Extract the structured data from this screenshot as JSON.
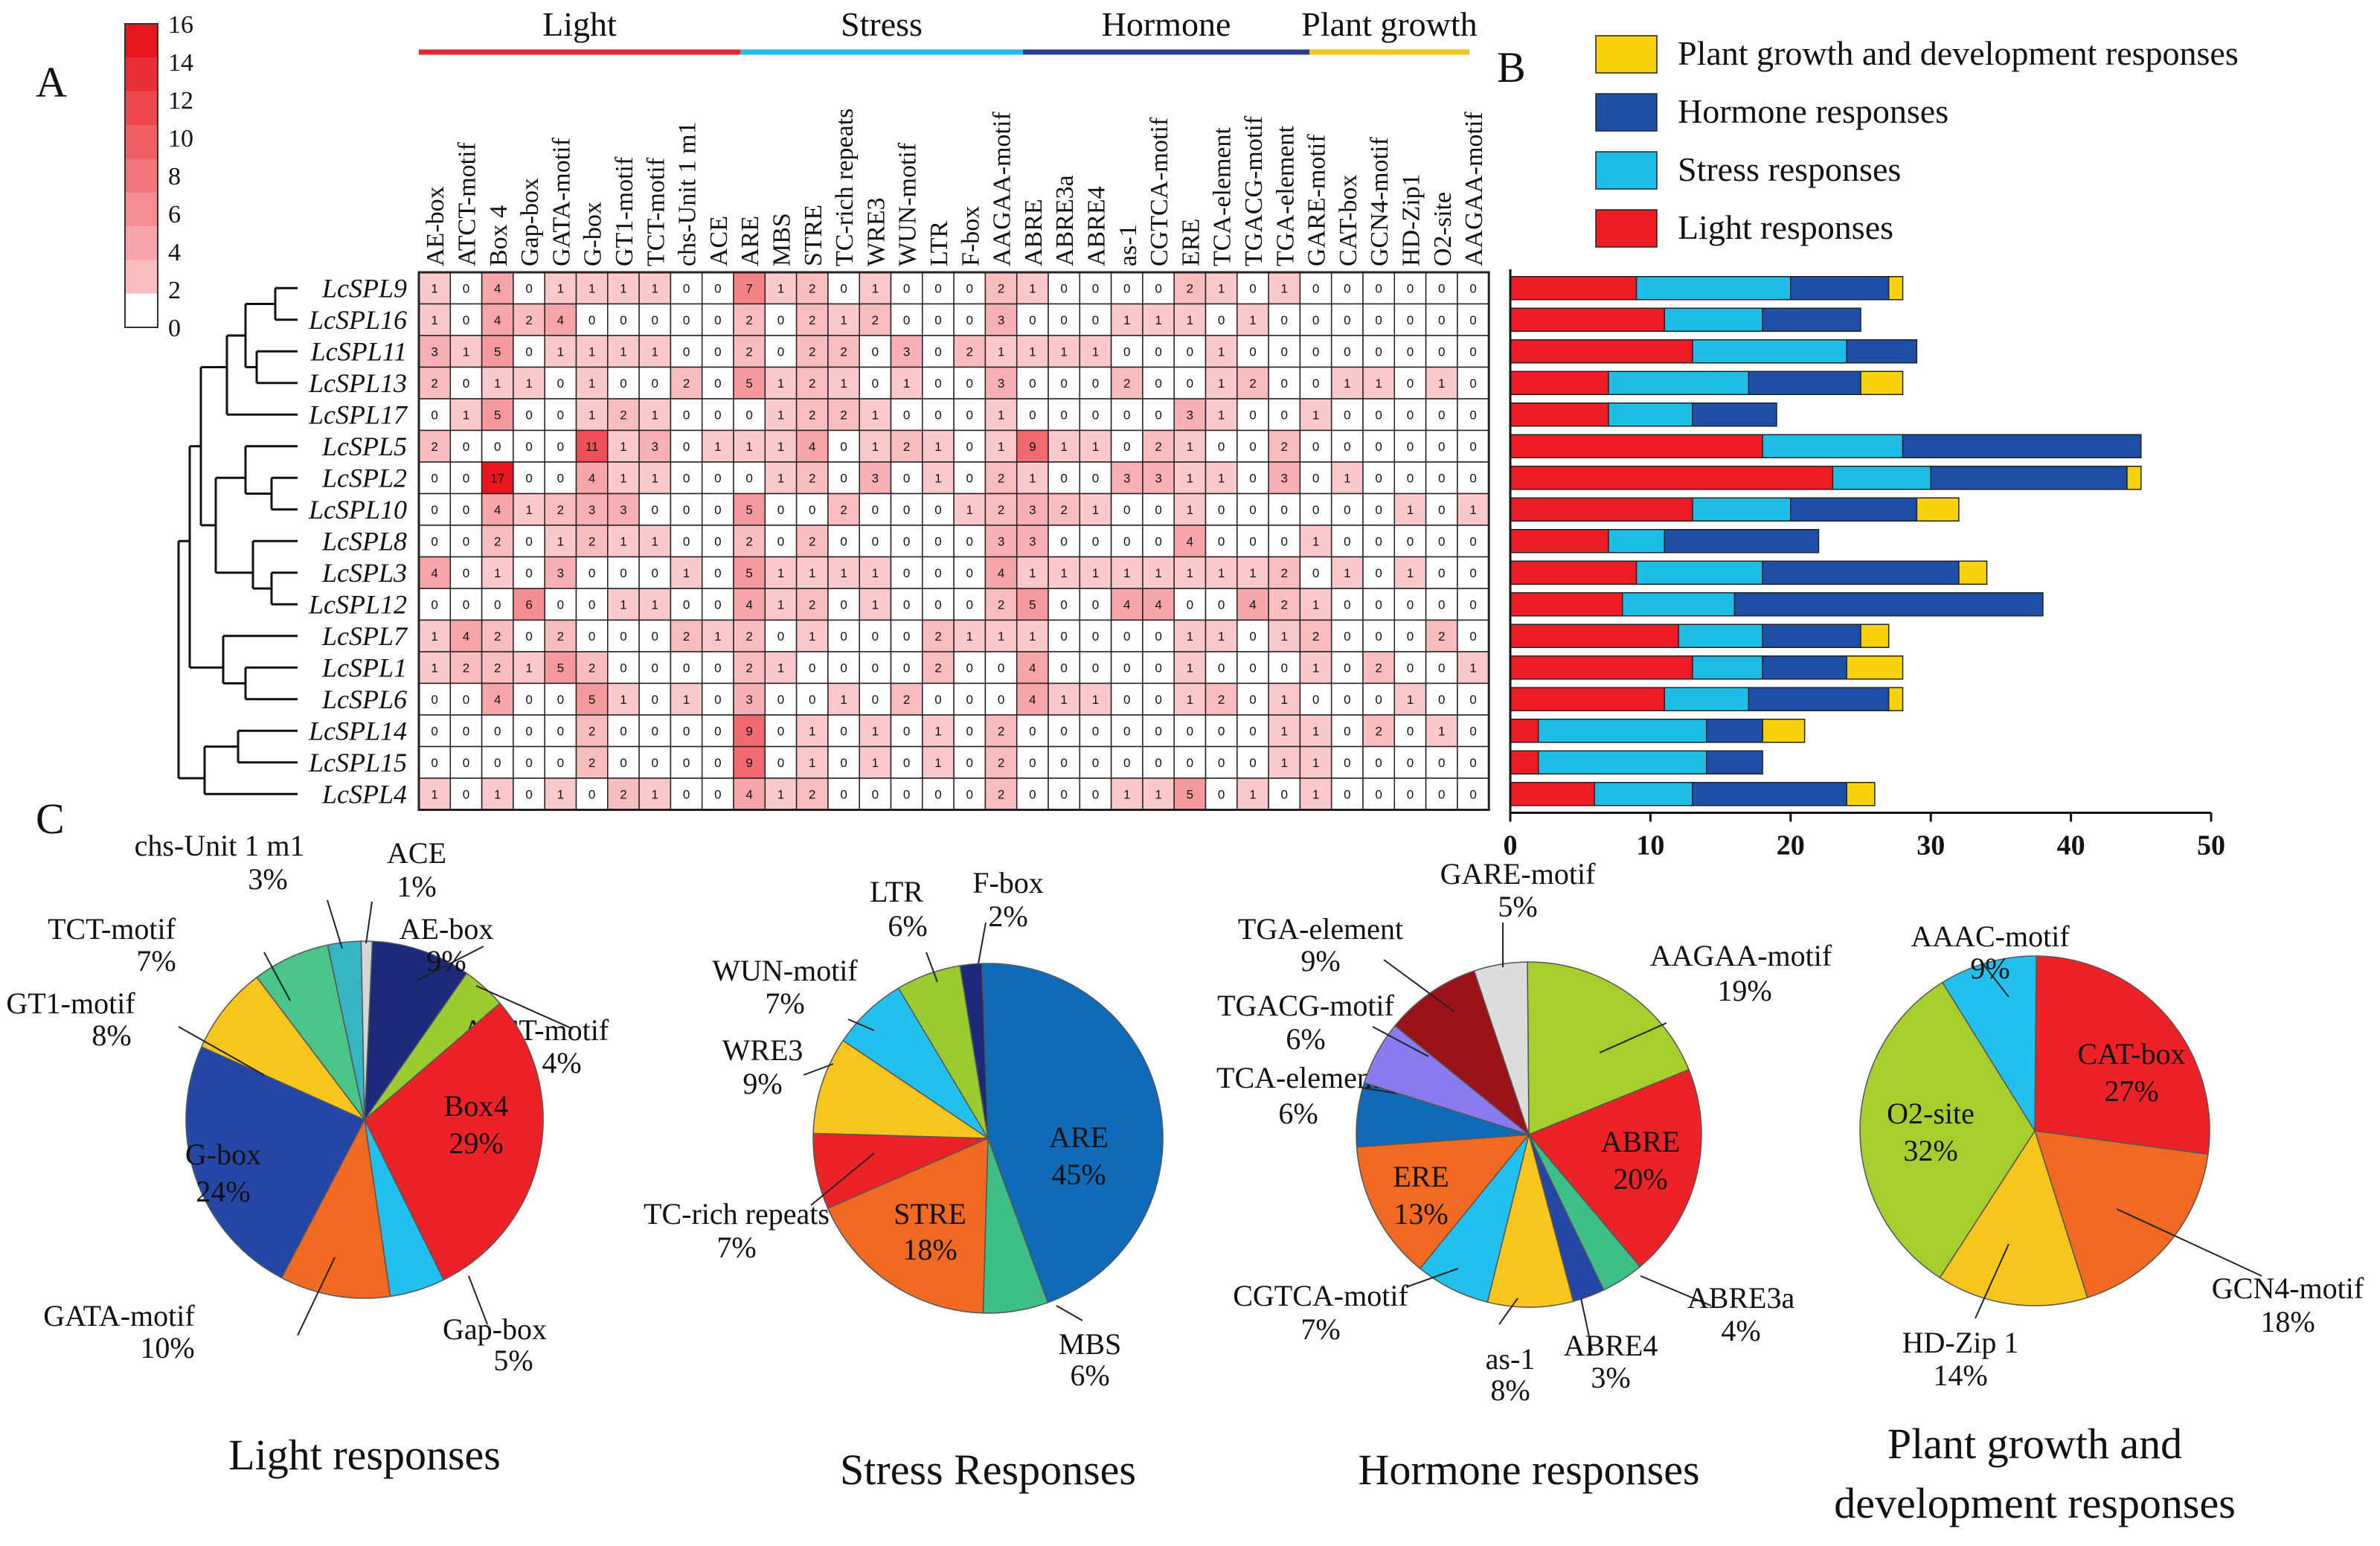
{
  "panels": {
    "a": "A",
    "b": "B",
    "c": "C"
  },
  "colorbar": {
    "ticks": [
      "0",
      "2",
      "4",
      "6",
      "8",
      "10",
      "12",
      "14",
      "16"
    ],
    "min": 0,
    "max": 16
  },
  "colors": {
    "light": "#e8272a",
    "stress": "#1fbde7",
    "hormone": "#283c91",
    "plant_growth": "#f5c518",
    "bar_light": "#ee1c24",
    "bar_stress": "#1dbde8",
    "bar_hormone": "#1f4ea6",
    "bar_growth": "#f8d20a"
  },
  "chart_data": [
    {
      "id": "heatmap",
      "type": "heatmap",
      "title": "",
      "groups": [
        {
          "name": "Light",
          "start": 0,
          "end": 9
        },
        {
          "name": "Stress",
          "start": 10,
          "end": 18
        },
        {
          "name": "Hormone",
          "start": 19,
          "end": 27
        },
        {
          "name": "Plant growth",
          "start": 28,
          "end": 31
        }
      ],
      "columns": [
        "AE-box",
        "ATCT-motif",
        "Box 4",
        "Gap-box",
        "GATA-motif",
        "G-box",
        "GT1-motif",
        "TCT-motif",
        "chs-Unit 1 m1",
        "ACE",
        "ARE",
        "MBS",
        "STRE",
        "TC-rich repeats",
        "WRE3",
        "WUN-motif",
        "LTR",
        "F-box",
        "AAGAA-motif",
        "ABRE",
        "ABRE3a",
        "ABRE4",
        "as-1",
        "CGTCA-motif",
        "ERE",
        "TCA-element",
        "TGACG-motif",
        "TGA-element",
        "GARE-motif",
        "CAT-box",
        "GCN4-motif",
        "HD-Zip1",
        "O2-site",
        "AAGAA-motif"
      ],
      "rows": [
        "LcSPL9",
        "LcSPL16",
        "LcSPL11",
        "LcSPL13",
        "LcSPL17",
        "LcSPL5",
        "LcSPL2",
        "LcSPL10",
        "LcSPL8",
        "LcSPL3",
        "LcSPL12",
        "LcSPL7",
        "LcSPL1",
        "LcSPL6",
        "LcSPL14",
        "LcSPL15",
        "LcSPL4"
      ],
      "values": [
        [
          1,
          0,
          4,
          0,
          1,
          1,
          1,
          1,
          0,
          0,
          7,
          1,
          2,
          0,
          1,
          0,
          0,
          0,
          2,
          1,
          0,
          0,
          0,
          0,
          2,
          1,
          0,
          1,
          0,
          0,
          0,
          0,
          0,
          0
        ],
        [
          1,
          0,
          4,
          2,
          4,
          0,
          0,
          0,
          0,
          0,
          2,
          0,
          2,
          1,
          2,
          0,
          0,
          0,
          3,
          0,
          0,
          0,
          1,
          1,
          1,
          0,
          1,
          0,
          0,
          0,
          0,
          0,
          0,
          0
        ],
        [
          3,
          1,
          5,
          0,
          1,
          1,
          1,
          1,
          0,
          0,
          2,
          0,
          2,
          2,
          0,
          3,
          0,
          2,
          1,
          1,
          1,
          1,
          0,
          0,
          0,
          1,
          0,
          0,
          0,
          0,
          0,
          0,
          0,
          0
        ],
        [
          2,
          0,
          1,
          1,
          0,
          1,
          0,
          0,
          2,
          0,
          5,
          1,
          2,
          1,
          0,
          1,
          0,
          0,
          3,
          0,
          0,
          0,
          2,
          0,
          0,
          1,
          2,
          0,
          0,
          1,
          1,
          0,
          1,
          0
        ],
        [
          0,
          1,
          5,
          0,
          0,
          1,
          2,
          1,
          0,
          0,
          0,
          1,
          2,
          2,
          1,
          0,
          0,
          0,
          1,
          0,
          0,
          0,
          0,
          0,
          3,
          1,
          0,
          0,
          1,
          0,
          0,
          0,
          0,
          0
        ],
        [
          2,
          0,
          0,
          0,
          0,
          11,
          1,
          3,
          0,
          1,
          1,
          1,
          4,
          0,
          1,
          2,
          1,
          0,
          1,
          9,
          1,
          1,
          0,
          2,
          1,
          0,
          0,
          2,
          0,
          0,
          0,
          0,
          0,
          0
        ],
        [
          0,
          0,
          17,
          0,
          0,
          4,
          1,
          1,
          0,
          0,
          0,
          1,
          2,
          0,
          3,
          0,
          1,
          0,
          2,
          1,
          0,
          0,
          3,
          3,
          1,
          1,
          0,
          3,
          0,
          1,
          0,
          0,
          0,
          0
        ],
        [
          0,
          0,
          4,
          1,
          2,
          3,
          3,
          0,
          0,
          0,
          5,
          0,
          0,
          2,
          0,
          0,
          0,
          1,
          2,
          3,
          2,
          1,
          0,
          0,
          1,
          0,
          0,
          0,
          0,
          0,
          0,
          1,
          0,
          1
        ],
        [
          0,
          0,
          2,
          0,
          1,
          2,
          1,
          1,
          0,
          0,
          2,
          0,
          2,
          0,
          0,
          0,
          0,
          0,
          3,
          3,
          0,
          0,
          0,
          0,
          4,
          0,
          0,
          0,
          1,
          0,
          0,
          0,
          0,
          0
        ],
        [
          4,
          0,
          1,
          0,
          3,
          0,
          0,
          0,
          1,
          0,
          5,
          1,
          1,
          1,
          1,
          0,
          0,
          0,
          4,
          1,
          1,
          1,
          1,
          1,
          1,
          1,
          1,
          2,
          0,
          1,
          0,
          1,
          0,
          0
        ],
        [
          0,
          0,
          0,
          6,
          0,
          0,
          1,
          1,
          0,
          0,
          4,
          1,
          2,
          0,
          1,
          0,
          0,
          0,
          2,
          5,
          0,
          0,
          4,
          4,
          0,
          0,
          4,
          2,
          1,
          0,
          0,
          0,
          0,
          0
        ],
        [
          1,
          4,
          2,
          0,
          2,
          0,
          0,
          0,
          2,
          1,
          2,
          0,
          1,
          0,
          0,
          0,
          2,
          1,
          1,
          1,
          0,
          0,
          0,
          0,
          1,
          1,
          0,
          1,
          2,
          0,
          0,
          0,
          2,
          0
        ],
        [
          1,
          2,
          2,
          1,
          5,
          2,
          0,
          0,
          0,
          0,
          2,
          1,
          0,
          0,
          0,
          0,
          2,
          0,
          0,
          4,
          0,
          0,
          0,
          0,
          1,
          0,
          0,
          0,
          1,
          0,
          2,
          0,
          0,
          1
        ],
        [
          0,
          0,
          4,
          0,
          0,
          5,
          1,
          0,
          1,
          0,
          3,
          0,
          0,
          1,
          0,
          2,
          0,
          0,
          0,
          4,
          1,
          1,
          0,
          0,
          1,
          2,
          0,
          1,
          0,
          0,
          0,
          1,
          0,
          0
        ],
        [
          0,
          0,
          0,
          0,
          0,
          2,
          0,
          0,
          0,
          0,
          9,
          0,
          1,
          0,
          1,
          0,
          1,
          0,
          2,
          0,
          0,
          0,
          0,
          0,
          0,
          0,
          0,
          1,
          1,
          0,
          2,
          0,
          1,
          0
        ],
        [
          0,
          0,
          0,
          0,
          0,
          2,
          0,
          0,
          0,
          0,
          9,
          0,
          1,
          0,
          1,
          0,
          1,
          0,
          2,
          0,
          0,
          0,
          0,
          0,
          0,
          0,
          0,
          1,
          1,
          0,
          0,
          0,
          0,
          0
        ],
        [
          1,
          0,
          1,
          0,
          1,
          0,
          2,
          1,
          0,
          0,
          4,
          1,
          2,
          0,
          0,
          0,
          0,
          0,
          2,
          0,
          0,
          0,
          1,
          1,
          5,
          0,
          1,
          0,
          1,
          0,
          0,
          0,
          0,
          0
        ]
      ]
    },
    {
      "id": "stacked-bars",
      "type": "bar",
      "orientation": "horizontal",
      "stacked": true,
      "categories": [
        "LcSPL9",
        "LcSPL16",
        "LcSPL11",
        "LcSPL13",
        "LcSPL17",
        "LcSPL5",
        "LcSPL2",
        "LcSPL10",
        "LcSPL8",
        "LcSPL3",
        "LcSPL12",
        "LcSPL7",
        "LcSPL1",
        "LcSPL6",
        "LcSPL14",
        "LcSPL15",
        "LcSPL4"
      ],
      "series": [
        {
          "name": "Light responses",
          "values": [
            9,
            11,
            13,
            7,
            7,
            18,
            23,
            13,
            7,
            9,
            8,
            12,
            13,
            11,
            2,
            2,
            6
          ]
        },
        {
          "name": "Stress responses",
          "values": [
            11,
            7,
            11,
            10,
            6,
            10,
            7,
            7,
            4,
            9,
            8,
            6,
            5,
            6,
            12,
            12,
            7
          ]
        },
        {
          "name": "Hormone responses",
          "values": [
            7,
            7,
            5,
            8,
            6,
            17,
            14,
            9,
            11,
            14,
            22,
            7,
            6,
            10,
            4,
            4,
            11
          ]
        },
        {
          "name": "Plant growth and development responses",
          "values": [
            1,
            0,
            0,
            3,
            0,
            0,
            1,
            3,
            0,
            2,
            0,
            2,
            4,
            1,
            3,
            0,
            2
          ]
        }
      ],
      "legend_order": [
        "Plant growth and development responses",
        "Hormone responses",
        "Stress responses",
        "Light responses"
      ],
      "xlim": [
        0,
        50
      ],
      "xticks": [
        "0",
        "10",
        "20",
        "30",
        "40",
        "50"
      ]
    },
    {
      "id": "pie-light",
      "type": "pie",
      "title": "Light responses",
      "slices": [
        {
          "label": "AE-box",
          "pct": "9%",
          "value": 9,
          "color": "#1b2a7b"
        },
        {
          "label": "ATCT-motif",
          "pct": "4%",
          "value": 4,
          "color": "#9bcc2f"
        },
        {
          "label": "Box4",
          "pct": "29%",
          "value": 29,
          "color": "#ee2126",
          "inside": true
        },
        {
          "label": "Gap-box",
          "pct": "5%",
          "value": 5,
          "color": "#22c0ec"
        },
        {
          "label": "GATA-motif",
          "pct": "10%",
          "value": 10,
          "color": "#f26a21"
        },
        {
          "label": "G-box",
          "pct": "24%",
          "value": 24,
          "color": "#2446a6",
          "inside": true
        },
        {
          "label": "GT1-motif",
          "pct": "8%",
          "value": 8,
          "color": "#f8c51c"
        },
        {
          "label": "TCT-motif",
          "pct": "7%",
          "value": 7,
          "color": "#4bc48a"
        },
        {
          "label": "chs-Unit 1 m1",
          "pct": "3%",
          "value": 3,
          "color": "#35b6c2"
        },
        {
          "label": "ACE",
          "pct": "1%",
          "value": 1,
          "color": "#d5d5d5"
        }
      ]
    },
    {
      "id": "pie-stress",
      "type": "pie",
      "title": "Stress Responses",
      "slices": [
        {
          "label": "ARE",
          "pct": "45%",
          "value": 45,
          "color": "#0f6bb8",
          "inside": true
        },
        {
          "label": "MBS",
          "pct": "6%",
          "value": 6,
          "color": "#3fbf88"
        },
        {
          "label": "STRE",
          "pct": "18%",
          "value": 18,
          "color": "#f26a21",
          "inside": true
        },
        {
          "label": "TC-rich repeats",
          "pct": "7%",
          "value": 7,
          "color": "#ee2126"
        },
        {
          "label": "WRE3",
          "pct": "9%",
          "value": 9,
          "color": "#f8c51c"
        },
        {
          "label": "WUN-motif",
          "pct": "7%",
          "value": 7,
          "color": "#22c0ec"
        },
        {
          "label": "LTR",
          "pct": "6%",
          "value": 6,
          "color": "#9bcc2f"
        },
        {
          "label": "F-box",
          "pct": "2%",
          "value": 2,
          "color": "#1b2a7b"
        }
      ]
    },
    {
      "id": "pie-hormone",
      "type": "pie",
      "title": "Hormone responses",
      "slices": [
        {
          "label": "AAGAA-motif",
          "pct": "19%",
          "value": 19,
          "color": "#a6cf2e"
        },
        {
          "label": "ABRE",
          "pct": "20%",
          "value": 20,
          "color": "#ee2126",
          "inside": true
        },
        {
          "label": "ABRE3a",
          "pct": "4%",
          "value": 4,
          "color": "#3fbf88"
        },
        {
          "label": "ABRE4",
          "pct": "3%",
          "value": 3,
          "color": "#2446a6"
        },
        {
          "label": "as-1",
          "pct": "8%",
          "value": 8,
          "color": "#f8c51c"
        },
        {
          "label": "CGTCA-motif",
          "pct": "7%",
          "value": 7,
          "color": "#22c0ec"
        },
        {
          "label": "ERE",
          "pct": "13%",
          "value": 13,
          "color": "#f26a21",
          "inside": true
        },
        {
          "label": "TCA-element",
          "pct": "6%",
          "value": 6,
          "color": "#0f6bb8"
        },
        {
          "label": "TGACG-motif",
          "pct": "6%",
          "value": 6,
          "color": "#8a7bf0"
        },
        {
          "label": "TGA-element",
          "pct": "9%",
          "value": 9,
          "color": "#9b1319"
        },
        {
          "label": "GARE-motif",
          "pct": "5%",
          "value": 5,
          "color": "#dcdcdc"
        }
      ]
    },
    {
      "id": "pie-growth",
      "type": "pie",
      "title": "Plant growth and development responses",
      "slices": [
        {
          "label": "CAT-box",
          "pct": "27%",
          "value": 27,
          "color": "#ee2126",
          "inside": true
        },
        {
          "label": "GCN4-motif",
          "pct": "18%",
          "value": 18,
          "color": "#f26a21"
        },
        {
          "label": "HD-Zip 1",
          "pct": "14%",
          "value": 14,
          "color": "#f8c51c"
        },
        {
          "label": "O2-site",
          "pct": "32%",
          "value": 32,
          "color": "#a6cf2e",
          "inside": true
        },
        {
          "label": "AAAC-motif",
          "pct": "9%",
          "value": 9,
          "color": "#22c0ec"
        }
      ]
    }
  ]
}
